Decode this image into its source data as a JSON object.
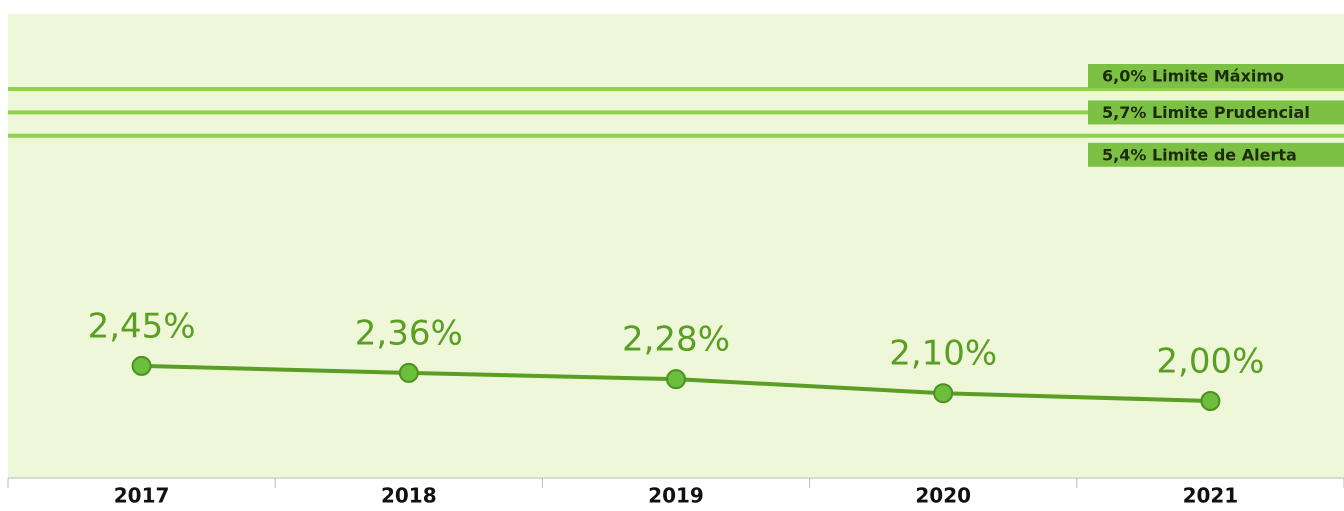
{
  "chart_data": {
    "type": "line",
    "categories": [
      "2017",
      "2018",
      "2019",
      "2020",
      "2021"
    ],
    "series": [
      {
        "name": null,
        "color": "#5a9e23",
        "values": [
          2.45,
          2.36,
          2.28,
          2.1,
          2.0
        ],
        "value_labels": [
          "2,45%",
          "2,36%",
          "2,28%",
          "2,10%",
          "2,00%"
        ]
      }
    ],
    "reference_lines": [
      {
        "value": 6.0,
        "label": "6,0% Limite Máximo"
      },
      {
        "value": 5.7,
        "label": "5,7% Limite Prudencial"
      },
      {
        "value": 5.4,
        "label": "5,4% Limite de Alerta"
      }
    ],
    "reference_color": "#8fd14f",
    "ylim": [
      1,
      7
    ]
  }
}
